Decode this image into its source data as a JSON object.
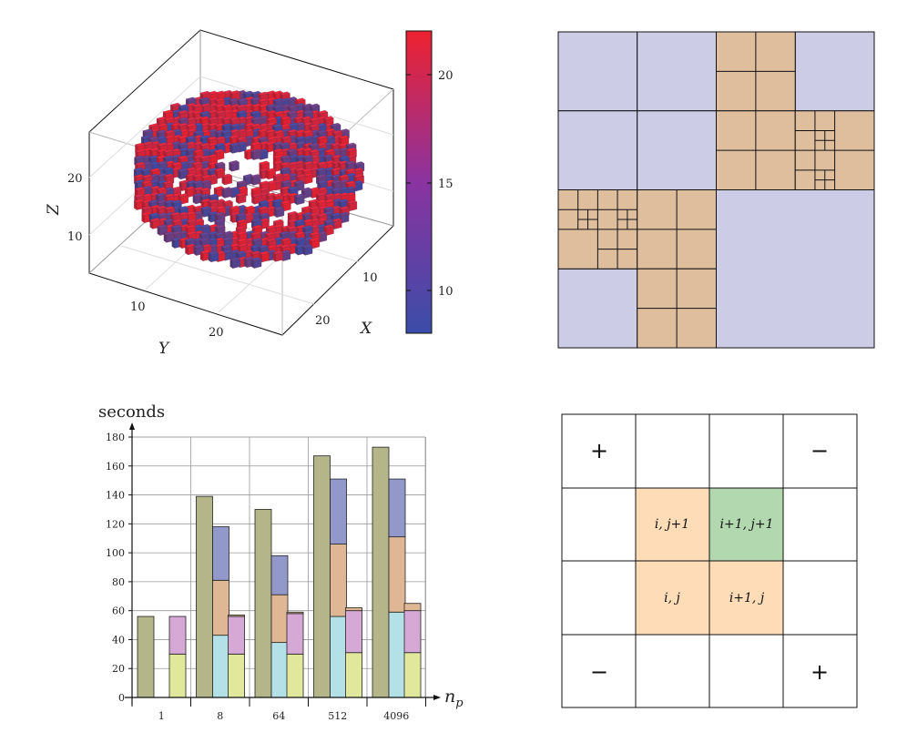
{
  "colors": {
    "voxel_low": "#3b4da8",
    "voxel_high": "#ee2230",
    "quad_empty": "#cdcce6",
    "quad_filled": "#dfbe9e",
    "stencil_orange": "#fddcb7",
    "stencil_green": "#b2d8b0",
    "bar_olive": "#b5b58a",
    "bar_blue": "#9298c9",
    "bar_tan": "#dfb794",
    "bar_cyan": "#b4e1e7",
    "bar_pink": "#d6a8d6",
    "bar_yellow": "#e1e89c"
  },
  "chart_data": [
    {
      "type": "scatter3d",
      "description_marks": "voxel cloud",
      "xlabel": "X",
      "ylabel": "Y",
      "zlabel": "Z",
      "x_ticks": [
        "10",
        "20"
      ],
      "y_ticks": [
        "10",
        "20"
      ],
      "z_ticks": [
        "10",
        "20"
      ],
      "colorbar": {
        "ticks": [
          "10",
          "15",
          "20"
        ],
        "range": [
          8,
          22
        ]
      }
    },
    {
      "type": "table",
      "xlabel": "n_p",
      "ylabel": "seconds",
      "categories": [
        "1",
        "8",
        "64",
        "512",
        "4096"
      ],
      "ylim": [
        0,
        180
      ],
      "yticks": [
        "0",
        "20",
        "40",
        "60",
        "80",
        "100",
        "120",
        "140",
        "160",
        "180"
      ],
      "grid": true,
      "bars": [
        {
          "category": "1",
          "slot": 0,
          "segments": [
            {
              "from": 0,
              "to": 56,
              "color": "bar_olive"
            }
          ]
        },
        {
          "category": "1",
          "slot": 2,
          "segments": [
            {
              "from": 0,
              "to": 30,
              "color": "bar_yellow"
            },
            {
              "from": 30,
              "to": 56,
              "color": "bar_pink"
            }
          ]
        },
        {
          "category": "8",
          "slot": 0,
          "segments": [
            {
              "from": 0,
              "to": 139,
              "color": "bar_olive"
            }
          ]
        },
        {
          "category": "8",
          "slot": 1,
          "segments": [
            {
              "from": 0,
              "to": 43,
              "color": "bar_cyan"
            },
            {
              "from": 43,
              "to": 81,
              "color": "bar_tan"
            },
            {
              "from": 81,
              "to": 118,
              "color": "bar_blue"
            }
          ]
        },
        {
          "category": "8",
          "slot": 2,
          "segments": [
            {
              "from": 0,
              "to": 30,
              "color": "bar_yellow"
            },
            {
              "from": 30,
              "to": 56,
              "color": "bar_pink"
            },
            {
              "from": 56,
              "to": 57,
              "color": "bar_tan"
            }
          ]
        },
        {
          "category": "64",
          "slot": 0,
          "segments": [
            {
              "from": 0,
              "to": 130,
              "color": "bar_olive"
            }
          ]
        },
        {
          "category": "64",
          "slot": 1,
          "segments": [
            {
              "from": 0,
              "to": 38,
              "color": "bar_cyan"
            },
            {
              "from": 38,
              "to": 71,
              "color": "bar_tan"
            },
            {
              "from": 71,
              "to": 98,
              "color": "bar_blue"
            }
          ]
        },
        {
          "category": "64",
          "slot": 2,
          "segments": [
            {
              "from": 0,
              "to": 30,
              "color": "bar_yellow"
            },
            {
              "from": 30,
              "to": 58,
              "color": "bar_pink"
            },
            {
              "from": 58,
              "to": 59,
              "color": "bar_tan"
            }
          ]
        },
        {
          "category": "512",
          "slot": 0,
          "segments": [
            {
              "from": 0,
              "to": 167,
              "color": "bar_olive"
            }
          ]
        },
        {
          "category": "512",
          "slot": 1,
          "segments": [
            {
              "from": 0,
              "to": 56,
              "color": "bar_cyan"
            },
            {
              "from": 56,
              "to": 106,
              "color": "bar_tan"
            },
            {
              "from": 106,
              "to": 151,
              "color": "bar_blue"
            }
          ]
        },
        {
          "category": "512",
          "slot": 2,
          "segments": [
            {
              "from": 0,
              "to": 31,
              "color": "bar_yellow"
            },
            {
              "from": 31,
              "to": 60,
              "color": "bar_pink"
            },
            {
              "from": 60,
              "to": 62,
              "color": "bar_tan"
            }
          ]
        },
        {
          "category": "4096",
          "slot": 0,
          "segments": [
            {
              "from": 0,
              "to": 173,
              "color": "bar_olive"
            }
          ]
        },
        {
          "category": "4096",
          "slot": 1,
          "segments": [
            {
              "from": 0,
              "to": 59,
              "color": "bar_cyan"
            },
            {
              "from": 59,
              "to": 111,
              "color": "bar_tan"
            },
            {
              "from": 111,
              "to": 151,
              "color": "bar_blue"
            }
          ]
        },
        {
          "category": "4096",
          "slot": 2,
          "segments": [
            {
              "from": 0,
              "to": 31,
              "color": "bar_yellow"
            },
            {
              "from": 31,
              "to": 60,
              "color": "bar_pink"
            },
            {
              "from": 60,
              "to": 65,
              "color": "bar_tan"
            }
          ]
        }
      ]
    }
  ],
  "quadtree": {
    "description": "adaptive refinement grid",
    "filled_blocks": "tan",
    "empty_blocks": "lavender"
  },
  "stencil": {
    "cells": {
      "top_right": "i+1, j+1",
      "top_left": "i, j+1",
      "bottom_left": "i, j",
      "bottom_right": "i+1, j"
    },
    "signs": {
      "tl": "+",
      "tr": "−",
      "bl": "−",
      "br": "+"
    }
  },
  "labels": {
    "seconds": "seconds",
    "np_main": "n",
    "np_sub": "p"
  }
}
